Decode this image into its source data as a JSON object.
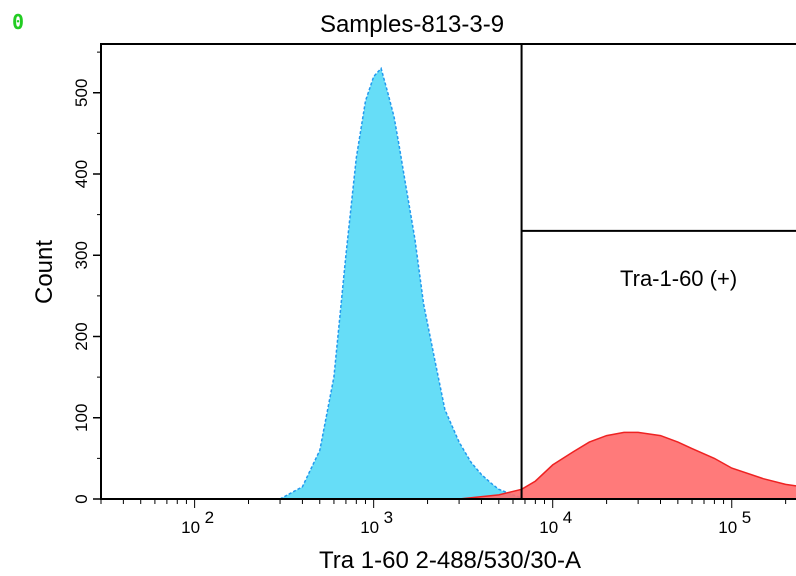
{
  "corner_tag": "0",
  "chart_data": {
    "type": "area",
    "title": "Samples-813-3-9",
    "xlabel": "Tra 1-60 2-488/530/30-A",
    "ylabel": "Count",
    "x_scale": "log",
    "xlim": [
      30,
      250000
    ],
    "ylim": [
      0,
      560
    ],
    "x_ticks": [
      {
        "value": 100,
        "base": "10",
        "exp": "2"
      },
      {
        "value": 1000,
        "base": "10",
        "exp": "3"
      },
      {
        "value": 10000,
        "base": "10",
        "exp": "4"
      },
      {
        "value": 100000,
        "base": "10",
        "exp": "5"
      }
    ],
    "y_ticks": [
      0,
      100,
      200,
      300,
      400,
      500
    ],
    "gate": {
      "x": 6700,
      "y": 330,
      "label": "Tra-1-60 (+)"
    },
    "series": [
      {
        "color": "#66ddf7",
        "stroke": "#2299ee",
        "x": [
          300,
          400,
          500,
          600,
          700,
          800,
          900,
          1000,
          1100,
          1200,
          1300,
          1400,
          1500,
          1700,
          1900,
          2200,
          2500,
          3000,
          3500,
          4000,
          4500,
          5000,
          6000,
          7000
        ],
        "values": [
          0,
          15,
          60,
          150,
          300,
          420,
          490,
          520,
          530,
          500,
          470,
          430,
          390,
          320,
          240,
          170,
          110,
          70,
          45,
          30,
          20,
          12,
          5,
          0
        ]
      },
      {
        "color": "#ff6b6b",
        "stroke": "#ee2222",
        "x": [
          3000,
          5000,
          6700,
          8000,
          10000,
          13000,
          16000,
          20000,
          25000,
          30000,
          40000,
          50000,
          60000,
          80000,
          100000,
          150000,
          200000,
          250000
        ],
        "values": [
          0,
          5,
          12,
          22,
          42,
          58,
          70,
          78,
          82,
          82,
          78,
          70,
          62,
          50,
          38,
          25,
          18,
          15
        ]
      }
    ]
  }
}
